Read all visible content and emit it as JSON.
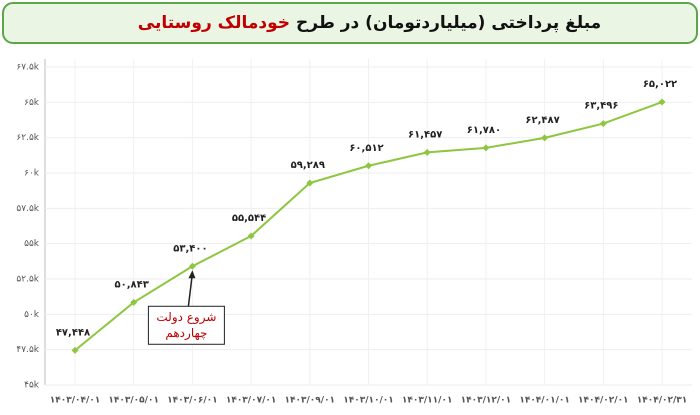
{
  "chart_data": {
    "type": "line",
    "title": "مبلغ پرداختی (میلیاردتومان) در طرح",
    "title_highlight": "خودمالک روستایی",
    "categories": [
      "۱۴۰۳/۰۴/۰۱",
      "۱۴۰۳/۰۵/۰۱",
      "۱۴۰۳/۰۶/۰۱",
      "۱۴۰۳/۰۷/۰۱",
      "۱۴۰۳/۰۹/۰۱",
      "۱۴۰۳/۱۰/۰۱",
      "۱۴۰۳/۱۱/۰۱",
      "۱۴۰۳/۱۲/۰۱",
      "۱۴۰۴/۰۱/۰۱",
      "۱۴۰۴/۰۲/۰۱",
      "۱۴۰۴/۰۲/۳۱"
    ],
    "values": [
      47448,
      50843,
      53400,
      55544,
      59289,
      60512,
      61457,
      61780,
      62487,
      63496,
      65022
    ],
    "value_labels": [
      "۴۷,۴۴۸",
      "۵۰,۸۴۳",
      "۵۳,۴۰۰",
      "۵۵,۵۴۴",
      "۵۹,۲۸۹",
      "۶۰,۵۱۲",
      "۶۱,۴۵۷",
      "۶۱,۷۸۰",
      "۶۲,۴۸۷",
      "۶۳,۴۹۶",
      "۶۵,۰۲۲"
    ],
    "color": "#8dc63f",
    "ylim": [
      45000,
      67500
    ],
    "yticks": [
      {
        "value": 45000,
        "label": "۴۵k"
      },
      {
        "value": 47500,
        "label": "۴۷.۵k"
      },
      {
        "value": 50000,
        "label": "۵۰k"
      },
      {
        "value": 52500,
        "label": "۵۲.۵k"
      },
      {
        "value": 55000,
        "label": "۵۵k"
      },
      {
        "value": 57500,
        "label": "۵۷.۵k"
      },
      {
        "value": 60000,
        "label": "۶۰k"
      },
      {
        "value": 62500,
        "label": "۶۲.۵k"
      },
      {
        "value": 65000,
        "label": "۶۵k"
      },
      {
        "value": 67500,
        "label": "۶۷.۵k"
      }
    ],
    "grid": true,
    "annotation": {
      "lines": [
        "شروع دولت",
        "چهاردهم"
      ],
      "category_index": 2
    }
  }
}
